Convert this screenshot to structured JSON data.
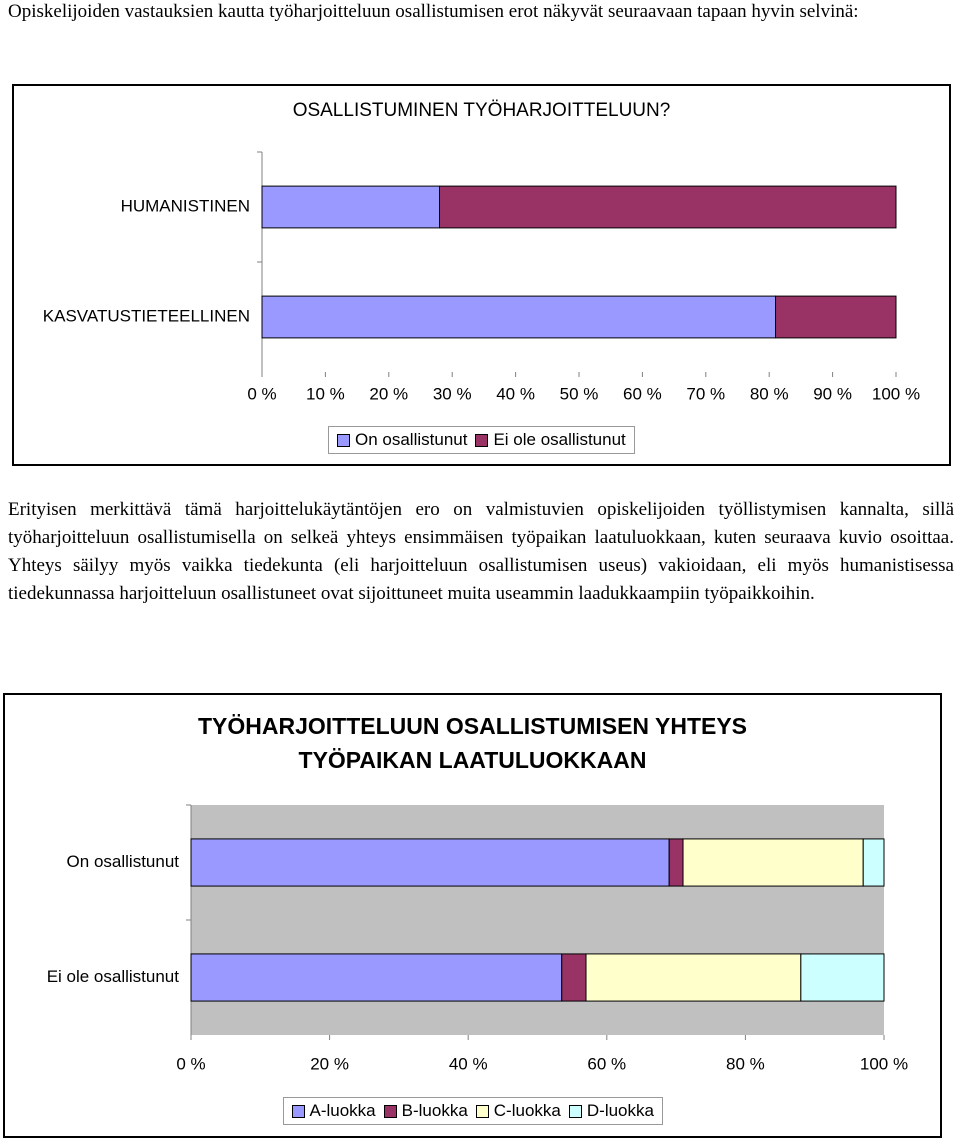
{
  "paragraphs": [
    "Opiskelijoiden vastauksien kautta työharjoitteluun osallistumisen erot näkyvät seuraavaan tapaan hyvin selvinä:",
    "Erityisen merkittävä tämä harjoittelukäytäntöjen ero on valmistuvien opiskelijoiden työllistymisen kannalta, sillä työharjoitteluun osallistumisella on selkeä yhteys ensimmäisen työpaikan laatuluokkaan, kuten seuraava kuvio osoittaa. Yhteys säilyy myös vaikka tiedekunta (eli harjoitteluun osallistumisen useus) vakioidaan, eli myös humanistisessa tiedekunnassa harjoitteluun osallistuneet ovat sijoittuneet muita useammin laadukkaampiin työpaikkoihin."
  ],
  "chart_data": [
    {
      "type": "bar",
      "orientation": "horizontal",
      "stacked": true,
      "title": "OSALLISTUMINEN TYÖHARJOITTELUUN?",
      "categories": [
        "HUMANISTINEN",
        "KASVATUSTIETEELLINEN"
      ],
      "series": [
        {
          "name": "On osallistunut",
          "color": "#9999ff",
          "values": [
            28,
            81
          ]
        },
        {
          "name": "Ei ole osallistunut",
          "color": "#993366",
          "values": [
            72,
            19
          ]
        }
      ],
      "xlim": [
        0,
        100
      ],
      "xticks": [
        {
          "value": 0,
          "label": "0 %"
        },
        {
          "value": 10,
          "label": "10 %"
        },
        {
          "value": 20,
          "label": "20 %"
        },
        {
          "value": 30,
          "label": "30 %"
        },
        {
          "value": 40,
          "label": "40 %"
        },
        {
          "value": 50,
          "label": "50 %"
        },
        {
          "value": 60,
          "label": "60 %"
        },
        {
          "value": 70,
          "label": "70 %"
        },
        {
          "value": 80,
          "label": "80 %"
        },
        {
          "value": 90,
          "label": "90 %"
        },
        {
          "value": 100,
          "label": "100 %"
        }
      ],
      "grid": false,
      "legend": "bottom"
    },
    {
      "type": "bar",
      "orientation": "horizontal",
      "stacked": true,
      "title": "TYÖHARJOITTELUUN OSALLISTUMISEN YHTEYS TYÖPAIKAN LAATULUOKKAAN",
      "categories": [
        "On osallistunut",
        "Ei ole osallistunut"
      ],
      "series": [
        {
          "name": "A-luokka",
          "color": "#9999ff",
          "values": [
            69,
            53.5
          ]
        },
        {
          "name": "B-luokka",
          "color": "#993366",
          "values": [
            2,
            3.5
          ]
        },
        {
          "name": "C-luokka",
          "color": "#ffffcc",
          "values": [
            26,
            31
          ]
        },
        {
          "name": "D-luokka",
          "color": "#ccffff",
          "values": [
            3,
            12
          ]
        }
      ],
      "xlim": [
        0,
        100
      ],
      "xticks": [
        {
          "value": 0,
          "label": "0 %"
        },
        {
          "value": 20,
          "label": "20 %"
        },
        {
          "value": 40,
          "label": "40 %"
        },
        {
          "value": 60,
          "label": "60 %"
        },
        {
          "value": 80,
          "label": "80 %"
        },
        {
          "value": 100,
          "label": "100 %"
        }
      ],
      "grid": false,
      "legend": "bottom"
    }
  ]
}
